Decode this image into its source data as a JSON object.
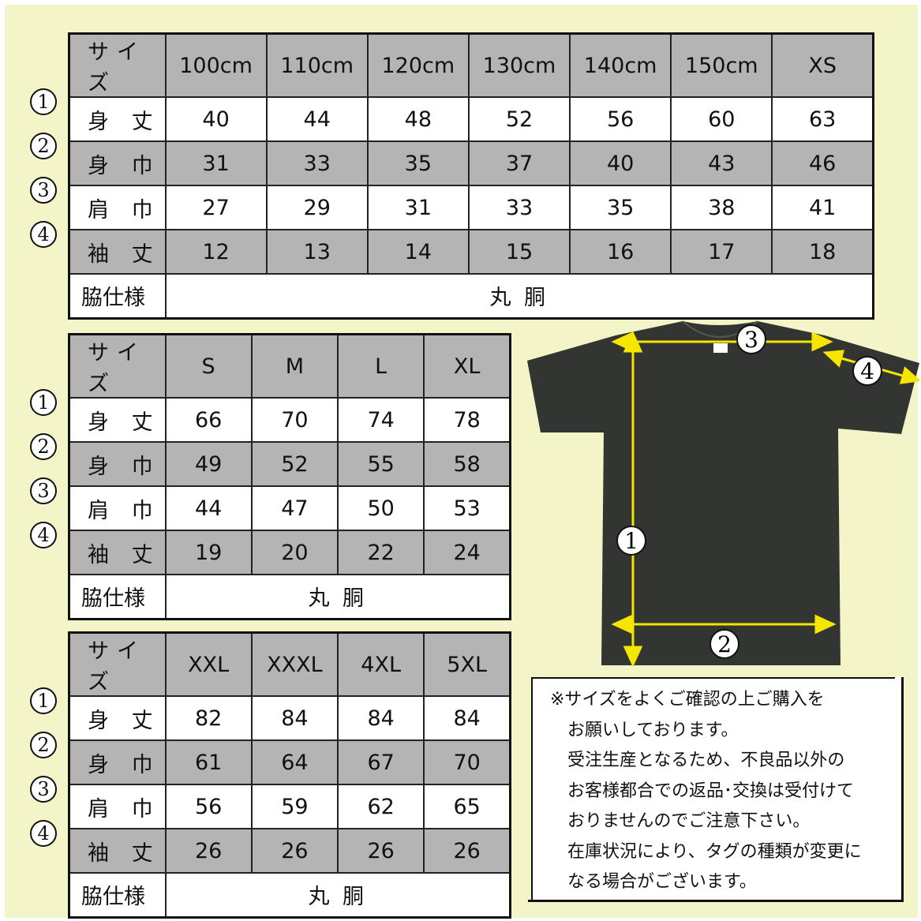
{
  "row_labels": [
    "身 丈",
    "身 巾",
    "肩 巾",
    "袖 丈"
  ],
  "header_label": "サイズ",
  "side_label": "脇仕様",
  "side_value": "丸 胴",
  "circled_numbers": [
    "①",
    "②",
    "③",
    "④"
  ],
  "tables": [
    {
      "sizes": [
        "100cm",
        "110cm",
        "120cm",
        "130cm",
        "140cm",
        "150cm",
        "XS"
      ],
      "rows": [
        [
          "40",
          "44",
          "48",
          "52",
          "56",
          "60",
          "63"
        ],
        [
          "31",
          "33",
          "35",
          "37",
          "40",
          "43",
          "46"
        ],
        [
          "27",
          "29",
          "31",
          "33",
          "35",
          "38",
          "41"
        ],
        [
          "12",
          "13",
          "14",
          "15",
          "16",
          "17",
          "18"
        ]
      ]
    },
    {
      "sizes": [
        "S",
        "M",
        "L",
        "XL"
      ],
      "rows": [
        [
          "66",
          "70",
          "74",
          "78"
        ],
        [
          "49",
          "52",
          "55",
          "58"
        ],
        [
          "44",
          "47",
          "50",
          "53"
        ],
        [
          "19",
          "20",
          "22",
          "24"
        ]
      ]
    },
    {
      "sizes": [
        "XXL",
        "XXXL",
        "4XL",
        "5XL"
      ],
      "rows": [
        [
          "82",
          "84",
          "84",
          "84"
        ],
        [
          "61",
          "64",
          "67",
          "70"
        ],
        [
          "56",
          "59",
          "62",
          "65"
        ],
        [
          "26",
          "26",
          "26",
          "26"
        ]
      ]
    }
  ],
  "shirt": {
    "color": "#333533",
    "arrow_color": "#f5e600",
    "markers": [
      "①",
      "②",
      "③",
      "④"
    ]
  },
  "colors": {
    "background": "#f3f5c8",
    "header_gray": "#b4b4b4"
  },
  "note": "※サイズをよくご確認の上ご購入を\n　お願いしております。\n　受注生産となるため、不良品以外の\n　お客様都合での返品･交換は受付けて\n　おりませんのでご注意下さい。\n　在庫状況により、タグの種類が変更に\n　なる場合がございます。"
}
